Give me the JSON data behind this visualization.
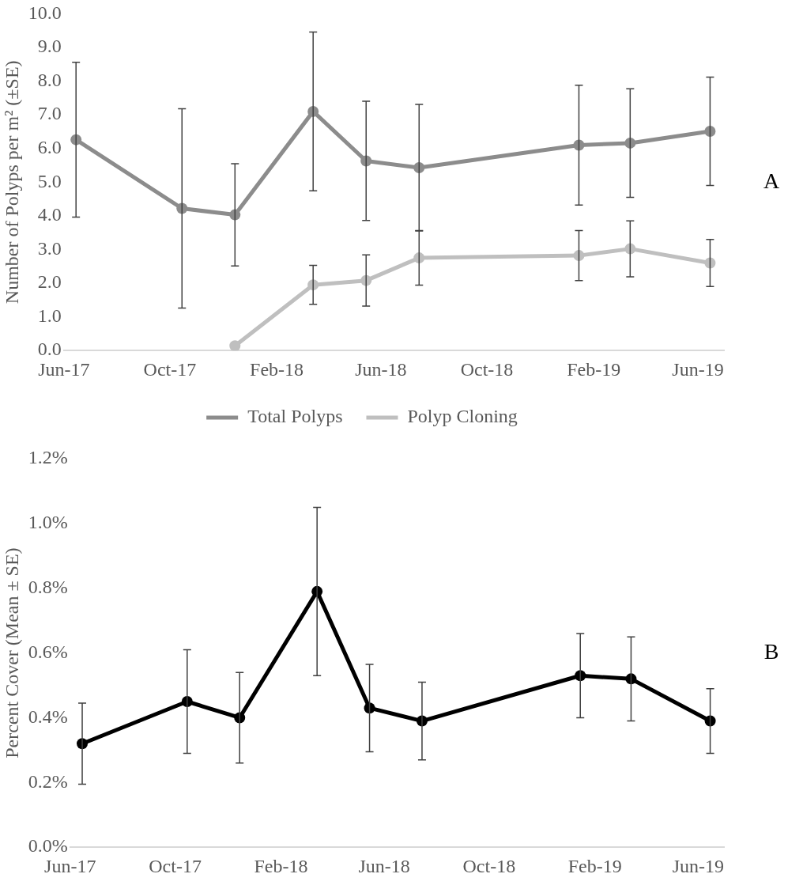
{
  "chart_data": [
    {
      "type": "line",
      "ylabel": "Number of Polyps per m² (±SE)",
      "annotations": [
        "A"
      ],
      "x": [
        "2017-06-15",
        "2017-10-15",
        "2017-12-15",
        "2018-03-15",
        "2018-05-15",
        "2018-07-15",
        "2019-01-15",
        "2019-03-15",
        "2019-06-15"
      ],
      "xlim": [
        "2017-06-01",
        "2019-07-01"
      ],
      "xticks": [
        {
          "value": "2017-06-01",
          "label": "Jun-17"
        },
        {
          "value": "2017-10-01",
          "label": "Oct-17"
        },
        {
          "value": "2018-02-01",
          "label": "Feb-18"
        },
        {
          "value": "2018-06-01",
          "label": "Jun-18"
        },
        {
          "value": "2018-10-01",
          "label": "Oct-18"
        },
        {
          "value": "2019-02-01",
          "label": "Feb-19"
        },
        {
          "value": "2019-06-01",
          "label": "Jun-19"
        }
      ],
      "ylim": [
        0,
        10
      ],
      "yticks": [
        {
          "value": 0,
          "label": "0.0"
        },
        {
          "value": 1,
          "label": "1.0"
        },
        {
          "value": 2,
          "label": "2.0"
        },
        {
          "value": 3,
          "label": "3.0"
        },
        {
          "value": 4,
          "label": "4.0"
        },
        {
          "value": 5,
          "label": "5.0"
        },
        {
          "value": 6,
          "label": "6.0"
        },
        {
          "value": 7,
          "label": "7.0"
        },
        {
          "value": 8,
          "label": "8.0"
        },
        {
          "value": 9,
          "label": "9.0"
        },
        {
          "value": 10,
          "label": "10.0"
        }
      ],
      "series": [
        {
          "name": "Total Polyps",
          "color": "#8c8c8c",
          "values": [
            6.26,
            4.22,
            4.03,
            7.1,
            5.63,
            5.43,
            6.1,
            6.16,
            6.51
          ],
          "errors": [
            2.3,
            2.96,
            1.52,
            2.36,
            1.77,
            1.88,
            1.78,
            1.61,
            1.61
          ]
        },
        {
          "name": "Polyp Cloning",
          "color": "#bfbfbf",
          "values": [
            null,
            null,
            0.14,
            1.95,
            2.08,
            2.75,
            2.82,
            3.02,
            2.6
          ],
          "errors": [
            null,
            null,
            null,
            0.58,
            0.76,
            0.81,
            0.74,
            0.83,
            0.7
          ]
        }
      ],
      "legend": "bottom",
      "marker": "circle",
      "grid": false
    },
    {
      "type": "line",
      "ylabel": "Percent Cover (Mean ± SE)",
      "annotations": [
        "B"
      ],
      "x": [
        "2017-06-15",
        "2017-10-15",
        "2017-12-15",
        "2018-03-15",
        "2018-05-15",
        "2018-07-15",
        "2019-01-15",
        "2019-03-15",
        "2019-06-15"
      ],
      "xlim": [
        "2017-06-01",
        "2019-07-01"
      ],
      "xticks": [
        {
          "value": "2017-06-01",
          "label": "Jun-17"
        },
        {
          "value": "2017-10-01",
          "label": "Oct-17"
        },
        {
          "value": "2018-02-01",
          "label": "Feb-18"
        },
        {
          "value": "2018-06-01",
          "label": "Jun-18"
        },
        {
          "value": "2018-10-01",
          "label": "Oct-18"
        },
        {
          "value": "2019-02-01",
          "label": "Feb-19"
        },
        {
          "value": "2019-06-01",
          "label": "Jun-19"
        }
      ],
      "ylim": [
        0,
        1.2
      ],
      "yticks": [
        {
          "value": 0,
          "label": "0.0%"
        },
        {
          "value": 0.2,
          "label": "0.2%"
        },
        {
          "value": 0.4,
          "label": "0.4%"
        },
        {
          "value": 0.6,
          "label": "0.6%"
        },
        {
          "value": 0.8,
          "label": "0.8%"
        },
        {
          "value": 1.0,
          "label": "1.0%"
        },
        {
          "value": 1.2,
          "label": "1.2%"
        }
      ],
      "series": [
        {
          "color": "#000000",
          "values": [
            0.32,
            0.45,
            0.4,
            0.79,
            0.43,
            0.39,
            0.53,
            0.52,
            0.39
          ],
          "errors": [
            0.125,
            0.16,
            0.14,
            0.26,
            0.135,
            0.12,
            0.13,
            0.13,
            0.1
          ]
        }
      ],
      "legend": false,
      "marker": "circle",
      "grid": false
    }
  ]
}
